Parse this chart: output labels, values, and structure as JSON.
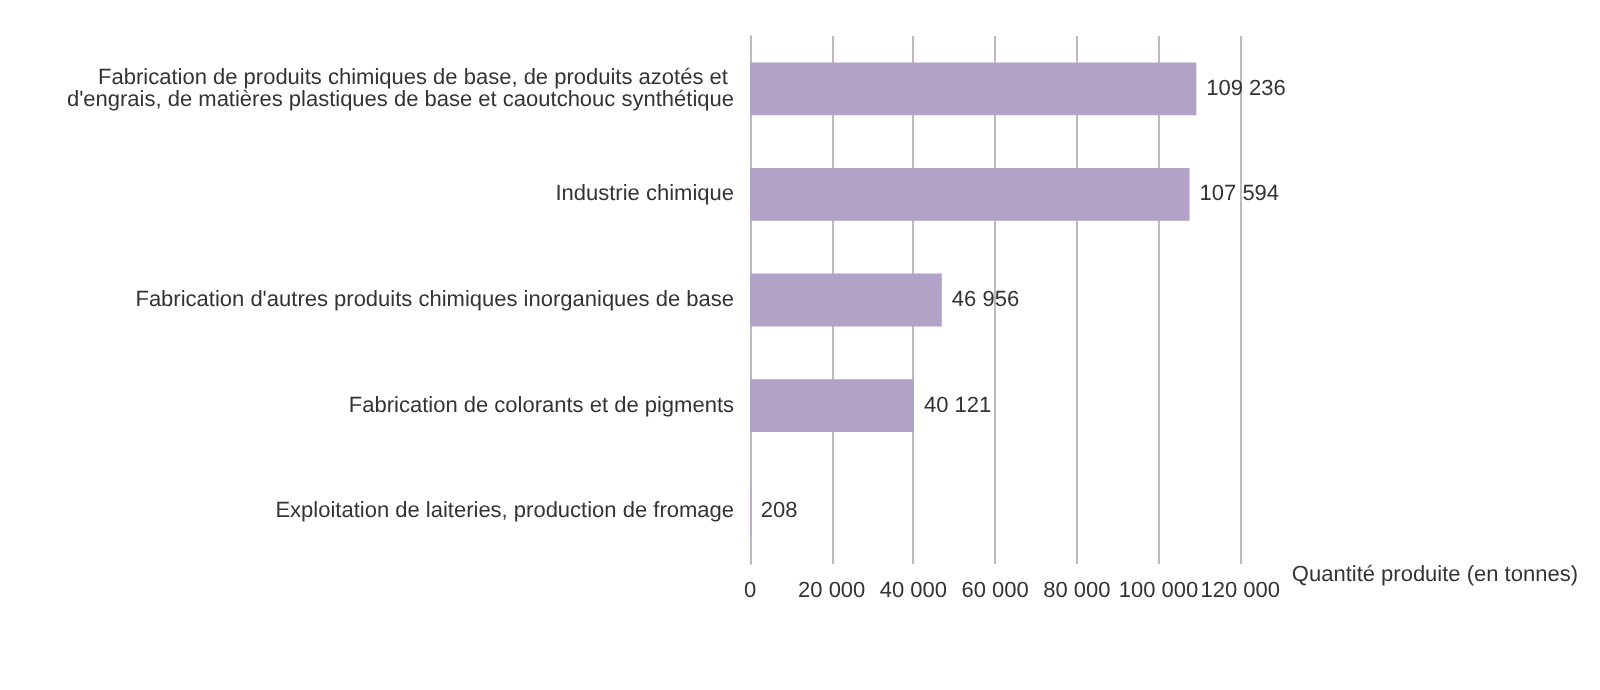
{
  "chart_data": {
    "type": "bar",
    "orientation": "horizontal",
    "categories": [
      "Fabrication de produits chimiques de base, de produits azotés et d'engrais, de matières plastiques de base et caoutchouc synthétique",
      "Industrie chimique",
      "Fabrication d'autres produits chimiques inorganiques de base",
      "Fabrication de colorants et de pigments",
      "Exploitation de laiteries, production de fromage"
    ],
    "values": [
      109236,
      107594,
      46956,
      40121,
      208
    ],
    "value_labels": [
      "109 236",
      "107 594",
      "46 956",
      "40 121",
      "208"
    ],
    "color": "#b3a2c7",
    "xlabel": "Quantité produite (en tonnes)",
    "xlim": [
      0,
      120000
    ],
    "xticks": [
      0,
      {
        "value": 20000,
        "label": "20 000"
      },
      {
        "value": 40000,
        "label": "40 000"
      },
      {
        "value": 60000,
        "label": "60 000"
      },
      {
        "value": 80000,
        "label": "80 000"
      },
      {
        "value": 100000,
        "label": "100 000"
      },
      {
        "value": 120000,
        "label": "120 000"
      }
    ],
    "grid": "x"
  }
}
